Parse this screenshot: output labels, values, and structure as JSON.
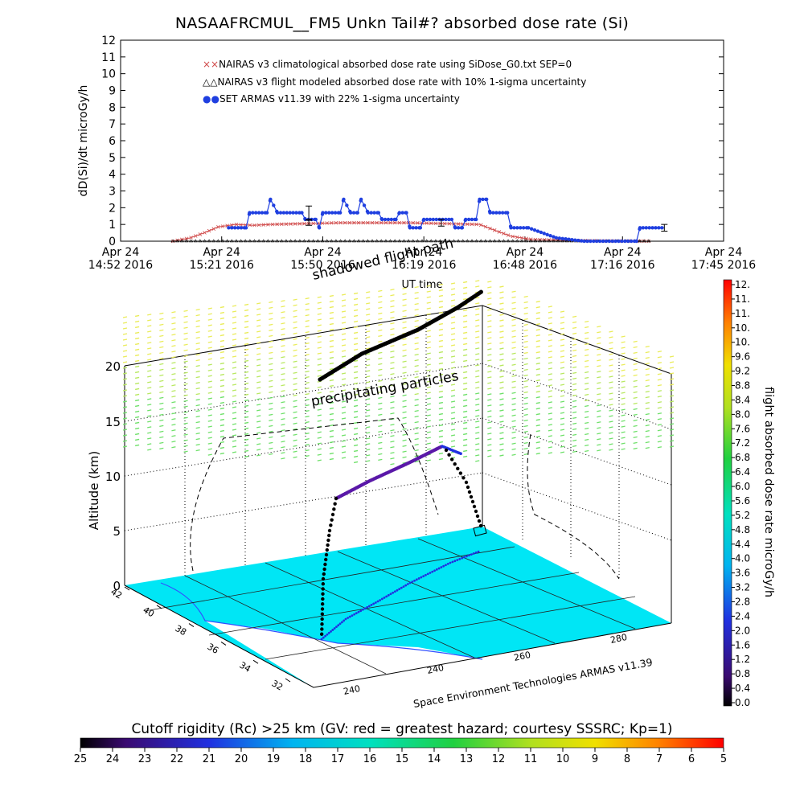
{
  "title": "NASAAFRCMUL__FM5 Unkn Tail#? absorbed dose rate (Si)",
  "colors": {
    "series_clim": "#d04a4a",
    "series_model": "#000000",
    "series_set": "#1f3fe0",
    "ground": "#00e6f5",
    "precip": "#9fe87a"
  },
  "chart_data": [
    {
      "type": "line",
      "ylabel": "dD(Si)/dt microGy/h",
      "xlabel": "UT time",
      "ylim": [
        0,
        12
      ],
      "yticks": [
        "0",
        "1",
        "2",
        "3",
        "4",
        "5",
        "6",
        "7",
        "8",
        "9",
        "10",
        "11",
        "12"
      ],
      "xticks": [
        {
          "l1": "Apr 24",
          "l2": "14:52 2016"
        },
        {
          "l1": "Apr 24",
          "l2": "15:21 2016"
        },
        {
          "l1": "Apr 24",
          "l2": "15:50 2016"
        },
        {
          "l1": "Apr 24",
          "l2": "16:19 2016"
        },
        {
          "l1": "Apr 24",
          "l2": "16:48 2016"
        },
        {
          "l1": "Apr 24",
          "l2": "17:16 2016"
        },
        {
          "l1": "Apr 24",
          "l2": "17:45 2016"
        }
      ],
      "xtick_minutes": [
        892,
        921,
        950,
        979,
        1008,
        1036,
        1065
      ],
      "legend": [
        "NAIRAS v3 climatological absorbed dose rate using SiDose_G0.txt SEP=0",
        "NAIRAS v3 flight modeled absorbed dose rate with 10% 1-sigma uncertainty",
        "SET ARMAS v11.39 with 22% 1-sigma uncertainty"
      ],
      "series": [
        {
          "name": "NAIRAS v3 climatological absorbed dose rate using SiDose_G0.txt SEP=0",
          "points": [
            [
              907,
              0
            ],
            [
              912,
              0.2
            ],
            [
              916,
              0.5
            ],
            [
              920,
              0.85
            ],
            [
              925,
              1.0
            ],
            [
              930,
              0.95
            ],
            [
              935,
              1.0
            ],
            [
              945,
              1.05
            ],
            [
              955,
              1.1
            ],
            [
              965,
              1.1
            ],
            [
              975,
              1.1
            ],
            [
              985,
              1.05
            ],
            [
              995,
              1.0
            ],
            [
              1000,
              0.6
            ],
            [
              1004,
              0.3
            ],
            [
              1010,
              0.1
            ],
            [
              1020,
              0.05
            ],
            [
              1030,
              0.02
            ],
            [
              1044,
              0
            ]
          ]
        },
        {
          "name": "NAIRAS v3 flight modeled absorbed dose rate with 10% 1-sigma uncertainty",
          "points": [
            [
              907,
              0
            ],
            [
              1044,
              0
            ]
          ]
        },
        {
          "name": "SET ARMAS v11.39 with 22% 1-sigma uncertainty",
          "points": [
            [
              923,
              0.8
            ],
            [
              928,
              0.8
            ],
            [
              929,
              1.7
            ],
            [
              934,
              1.7
            ],
            [
              935,
              2.5
            ],
            [
              937,
              1.7
            ],
            [
              944,
              1.7
            ],
            [
              945,
              1.3
            ],
            [
              948,
              1.3
            ],
            [
              949,
              0.8
            ],
            [
              950,
              1.7
            ],
            [
              955,
              1.7
            ],
            [
              956,
              2.5
            ],
            [
              958,
              1.7
            ],
            [
              960,
              1.7
            ],
            [
              961,
              2.5
            ],
            [
              963,
              1.7
            ],
            [
              966,
              1.7
            ],
            [
              967,
              1.3
            ],
            [
              971,
              1.3
            ],
            [
              972,
              1.7
            ],
            [
              974,
              1.7
            ],
            [
              975,
              0.8
            ],
            [
              978,
              0.8
            ],
            [
              979,
              1.3
            ],
            [
              987,
              1.3
            ],
            [
              988,
              0.8
            ],
            [
              990,
              0.8
            ],
            [
              991,
              1.3
            ],
            [
              994,
              1.3
            ],
            [
              995,
              2.5
            ],
            [
              997,
              2.5
            ],
            [
              998,
              1.7
            ],
            [
              1003,
              1.7
            ],
            [
              1004,
              0.8
            ],
            [
              1009,
              0.8
            ],
            [
              1017,
              0.2
            ],
            [
              1025,
              0
            ],
            [
              1040,
              0
            ],
            [
              1041,
              0.8
            ],
            [
              1048,
              0.8
            ]
          ]
        }
      ],
      "error_bars": [
        {
          "t": 946,
          "y": 1.7,
          "e": 0.4
        },
        {
          "t": 946,
          "y": 1.1,
          "e": 0.15
        },
        {
          "t": 984,
          "y": 1.1,
          "e": 0.2
        },
        {
          "t": 1048,
          "y": 0.8,
          "e": 0.2
        }
      ]
    },
    {
      "type": "scatter",
      "zlabel": "Altitude (km)",
      "zticks": [
        "0",
        "5",
        "10",
        "15",
        "20"
      ],
      "lat_ticks": [
        "42",
        "40",
        "38",
        "36",
        "34",
        "32"
      ],
      "lon_ticks": [
        "240",
        "240",
        "260",
        "280"
      ],
      "annotations": {
        "shadowed": "shadowed flight path",
        "precip": "precipitating particles",
        "credit": "Space Environment Technologies ARMAS v11.39"
      },
      "colorbar_right": {
        "label": "flight absorbed dose rate microGy/h",
        "ticks": [
          "12.",
          "11.",
          "11.",
          "10.",
          "10.",
          "9.6",
          "9.2",
          "8.8",
          "8.4",
          "8.0",
          "7.6",
          "7.2",
          "6.8",
          "6.4",
          "6.0",
          "5.6",
          "5.2",
          "4.8",
          "4.4",
          "4.0",
          "3.6",
          "3.2",
          "2.8",
          "2.4",
          "2.0",
          "1.6",
          "1.2",
          "0.8",
          "0.4",
          "0.0"
        ]
      },
      "colorbar_bottom": {
        "label": "Cutoff rigidity (Rc) >25 km (GV: red = greatest hazard; courtesy SSSRC; Kp=1)",
        "ticks": [
          "25",
          "24",
          "23",
          "22",
          "21",
          "20",
          "19",
          "18",
          "17",
          "16",
          "15",
          "14",
          "13",
          "12",
          "11",
          "10",
          "9",
          "8",
          "7",
          "6",
          "5"
        ]
      }
    }
  ]
}
